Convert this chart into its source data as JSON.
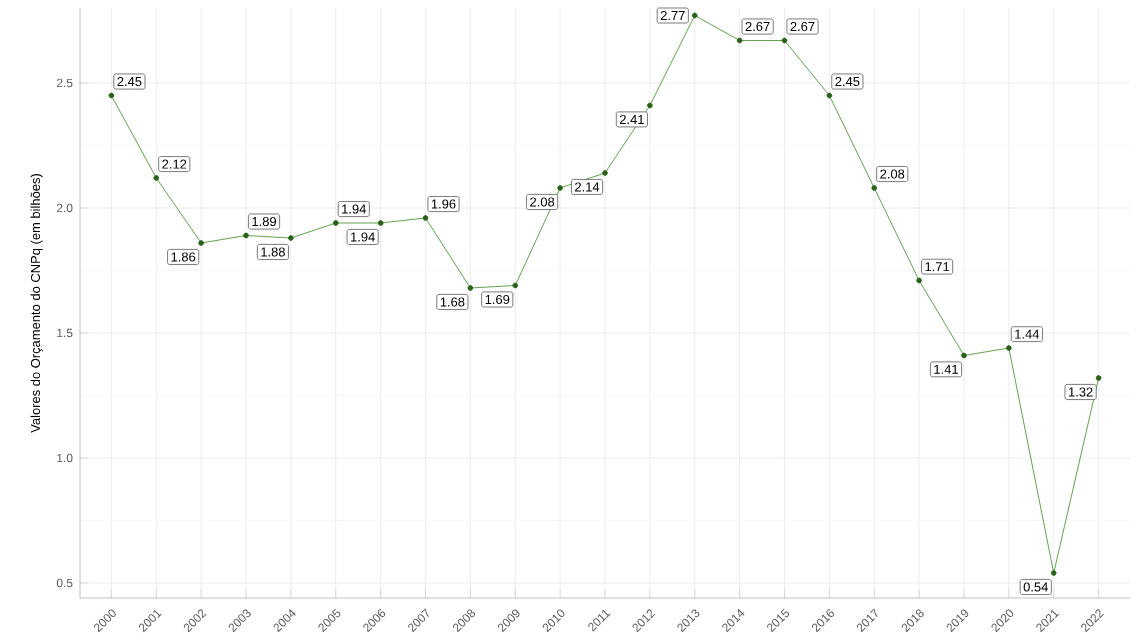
{
  "chart_data": {
    "type": "line",
    "ylabel": "Valores do Orçamento do CNPq (em bilhões)",
    "categories": [
      "2000",
      "2001",
      "2002",
      "2003",
      "2004",
      "2005",
      "2006",
      "2007",
      "2008",
      "2009",
      "2010",
      "2011",
      "2012",
      "2013",
      "2014",
      "2015",
      "2016",
      "2017",
      "2018",
      "2019",
      "2020",
      "2021",
      "2022"
    ],
    "values": [
      2.45,
      2.12,
      1.86,
      1.89,
      1.88,
      1.94,
      1.94,
      1.96,
      1.68,
      1.69,
      2.08,
      2.14,
      2.41,
      2.77,
      2.67,
      2.67,
      2.45,
      2.08,
      1.71,
      1.41,
      1.44,
      0.54,
      1.32
    ],
    "color": "#3a8a22",
    "ylim": [
      0.44,
      2.8
    ],
    "yticks": [
      0.5,
      {
        "value": 1.0,
        "label": "1.0"
      },
      1.5,
      {
        "value": 2.0,
        "label": "2.0"
      },
      2.5
    ],
    "grid": true,
    "marker": "circle",
    "line_style": "solid",
    "data_labels": true
  }
}
